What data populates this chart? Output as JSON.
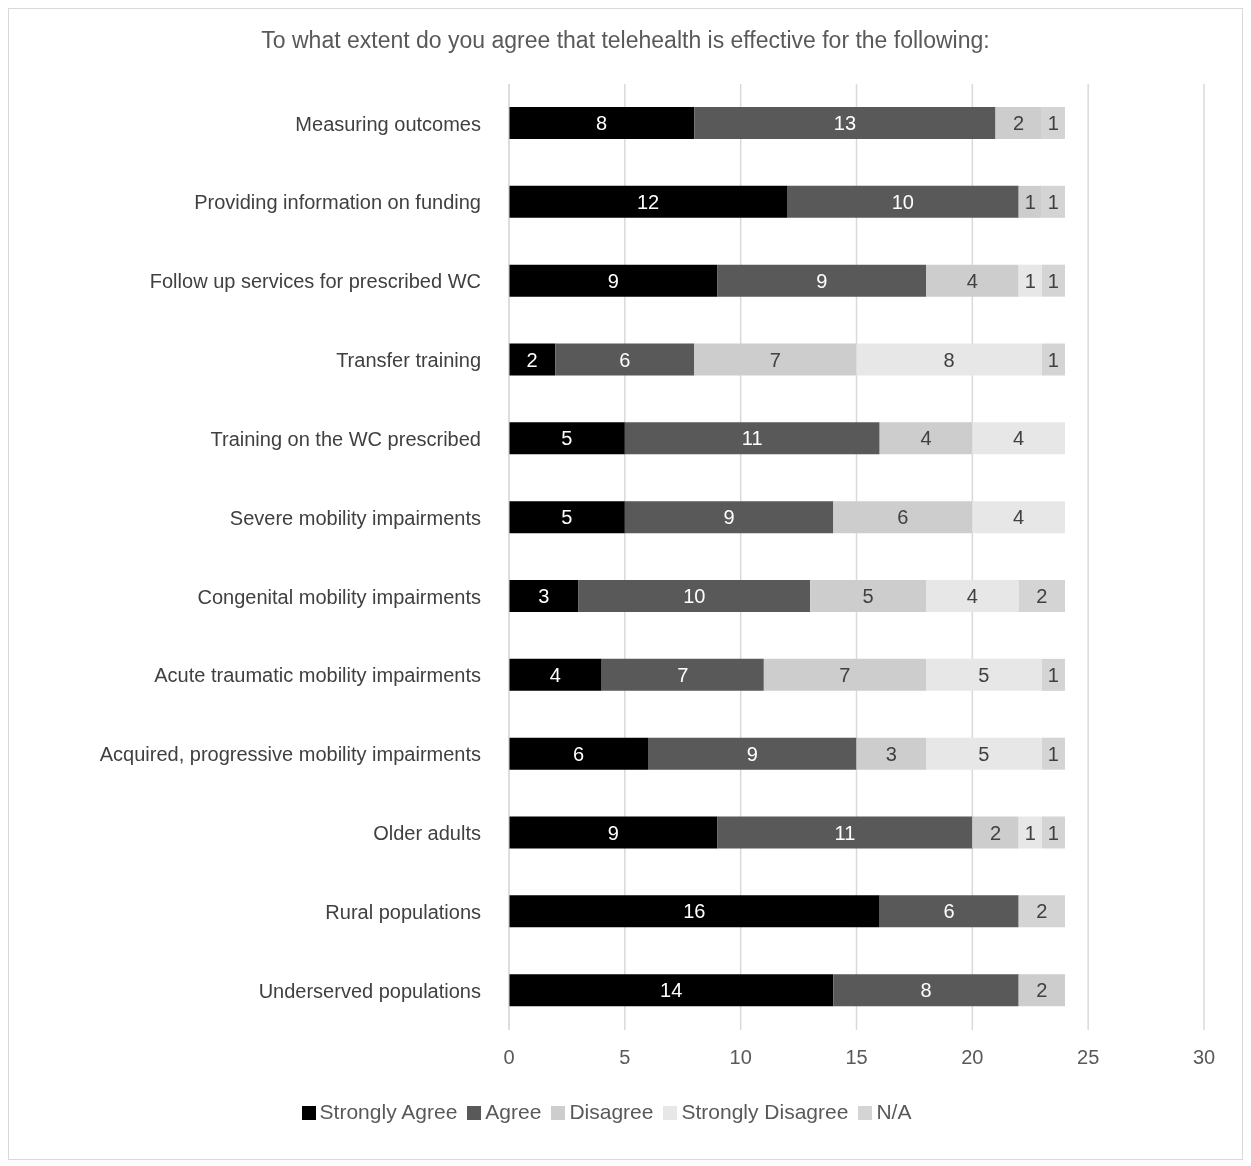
{
  "chart_data": {
    "type": "bar",
    "orientation": "horizontal",
    "stacked": true,
    "title": "To what extent do you agree that telehealth is effective for the following:",
    "categories": [
      "Measuring outcomes",
      "Providing information on funding",
      "Follow up services for prescribed WC",
      "Transfer training",
      "Training on the WC prescribed",
      "Severe mobility impairments",
      "Congenital mobility impairments",
      "Acute traumatic mobility impairments",
      "Acquired, progressive mobility impairments",
      "Older adults",
      "Rural populations",
      "Underserved populations"
    ],
    "series": [
      {
        "name": "Strongly Agree",
        "color": "#000000",
        "values": [
          8,
          12,
          9,
          2,
          5,
          5,
          3,
          4,
          6,
          9,
          16,
          14
        ]
      },
      {
        "name": "Agree",
        "color": "#595959",
        "values": [
          13,
          10,
          9,
          6,
          11,
          9,
          10,
          7,
          9,
          11,
          6,
          8
        ]
      },
      {
        "name": "Disagree",
        "color": "#cdcdcd",
        "values": [
          2,
          1,
          4,
          7,
          4,
          6,
          5,
          7,
          3,
          2,
          null,
          2
        ]
      },
      {
        "name": "Strongly Disagree",
        "color": "#e7e7e7",
        "values": [
          null,
          null,
          1,
          8,
          4,
          4,
          4,
          5,
          5,
          1,
          null,
          null
        ]
      },
      {
        "name": "N/A",
        "color": "#d4d4d4",
        "values": [
          1,
          1,
          1,
          1,
          null,
          null,
          2,
          1,
          1,
          1,
          2,
          null
        ]
      }
    ],
    "xlim": [
      0,
      30
    ],
    "xticks": [
      0,
      5,
      10,
      15,
      20,
      25,
      30
    ],
    "grid": "x",
    "legend": "bottom",
    "data_labels": true
  }
}
